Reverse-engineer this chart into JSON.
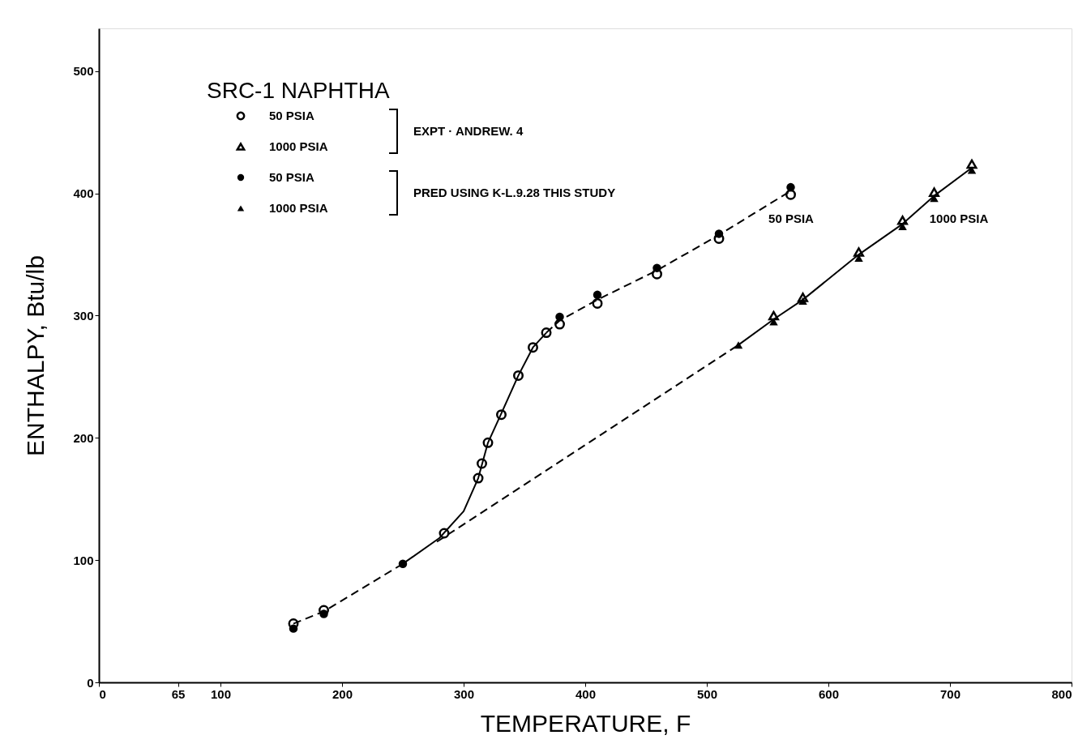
{
  "chart_data": {
    "type": "scatter",
    "title": "SRC-1 NAPHTHA",
    "xlabel": "TEMPERATURE, F",
    "ylabel": "ENTHALPY, Btu/lb",
    "xlim": [
      0,
      800
    ],
    "xticks": [
      0,
      65,
      100,
      200,
      300,
      400,
      500,
      600,
      700,
      800
    ],
    "ylim": [
      0,
      535
    ],
    "yticks": [
      0,
      100,
      200,
      300,
      400,
      500
    ],
    "grid": false,
    "legend": "top left",
    "series": [
      {
        "name": "50 PSIA",
        "marker": "circle",
        "color": "#000000",
        "x": [
          160,
          185,
          284,
          312,
          315,
          320,
          331,
          345,
          357,
          368,
          379,
          410,
          459,
          510,
          569
        ],
        "values": [
          48,
          59,
          122,
          167,
          179,
          196,
          219,
          251,
          274,
          286,
          293,
          310,
          334,
          363,
          399
        ]
      },
      {
        "name": "1000 PSIA",
        "marker": "triangle",
        "color": "#000000",
        "x": [
          555,
          579,
          625,
          661,
          687,
          718
        ],
        "values": [
          300,
          315,
          352,
          378,
          401,
          424
        ]
      },
      {
        "name": "50 PSIA",
        "marker": "circle",
        "color": "#000000",
        "x": [
          160,
          185,
          250,
          379,
          410,
          459,
          510,
          569
        ],
        "values": [
          44,
          56,
          97,
          299,
          317,
          339,
          367,
          405
        ]
      },
      {
        "name": "1000 PSIA",
        "marker": "triangle",
        "color": "#000000",
        "x": [
          526,
          555,
          579,
          625,
          661,
          687,
          718
        ],
        "values": [
          276,
          295,
          312,
          347,
          373,
          396,
          419
        ]
      },
      {
        "type": "line",
        "line_style": "dashed",
        "marker": "none",
        "color": "#000000",
        "x": [
          160,
          185,
          250
        ],
        "values": [
          48,
          58,
          97
        ]
      },
      {
        "type": "line",
        "line_style": "solid",
        "marker": "none",
        "color": "#000000",
        "x": [
          250,
          280,
          300,
          312,
          320,
          331,
          345,
          357,
          368
        ],
        "values": [
          97,
          118,
          140,
          167,
          196,
          220,
          251,
          274,
          286
        ]
      },
      {
        "type": "line",
        "line_style": "dashed",
        "marker": "none",
        "color": "#000000",
        "x": [
          368,
          379,
          410,
          459,
          510,
          569
        ],
        "values": [
          286,
          296,
          313,
          337,
          366,
          402
        ]
      },
      {
        "type": "line",
        "line_style": "dashed",
        "marker": "none",
        "color": "#000000",
        "x": [
          278,
          526
        ],
        "values": [
          115,
          276
        ]
      },
      {
        "type": "line",
        "line_style": "solid",
        "marker": "none",
        "color": "#000000",
        "x": [
          526,
          555,
          579,
          625,
          661,
          687,
          718
        ],
        "values": [
          276,
          297,
          313,
          350,
          375,
          398,
          421
        ]
      }
    ],
    "annotations": [
      "EXPT · ANDREW. 4",
      "PRED USING K-L.9.28 THIS STUDY",
      "50 PSIA",
      "1000 PSIA"
    ]
  }
}
